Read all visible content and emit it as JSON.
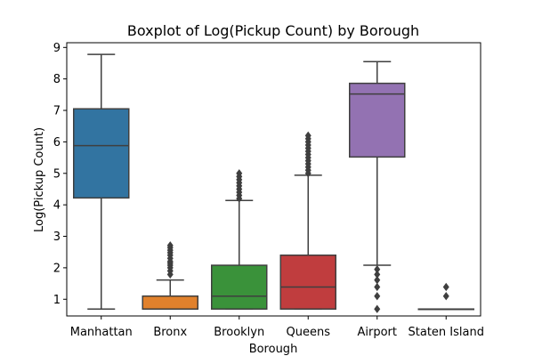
{
  "chart_data": {
    "type": "boxplot",
    "title": "Boxplot of Log(Pickup Count) by Borough",
    "xlabel": "Borough",
    "ylabel": "Log(Pickup Count)",
    "ylim": [
      0.47,
      9.15
    ],
    "yticks": [
      1,
      2,
      3,
      4,
      5,
      6,
      7,
      8,
      9
    ],
    "grid": false,
    "categories": [
      "Manhattan",
      "Bronx",
      "Brooklyn",
      "Queens",
      "Airport",
      "Staten Island"
    ],
    "boxes": [
      {
        "category": "Manhattan",
        "color": "#3274a1",
        "whisker_low": 0.69,
        "q1": 4.22,
        "median": 5.88,
        "q3": 7.05,
        "whisker_high": 8.78,
        "outliers": []
      },
      {
        "category": "Bronx",
        "color": "#e1812c",
        "whisker_low": 0.69,
        "q1": 0.69,
        "median": 0.69,
        "q3": 1.1,
        "whisker_high": 1.61,
        "outliers": [
          1.79,
          1.9,
          2.0,
          2.08,
          2.15,
          2.2,
          2.3,
          2.4,
          2.48,
          2.56,
          2.64,
          2.71
        ]
      },
      {
        "category": "Brooklyn",
        "color": "#3a923a",
        "whisker_low": 0.69,
        "q1": 0.69,
        "median": 1.1,
        "q3": 2.08,
        "whisker_high": 4.14,
        "outliers": [
          4.2,
          4.3,
          4.4,
          4.5,
          4.6,
          4.7,
          4.8,
          4.9,
          5.0
        ]
      },
      {
        "category": "Queens",
        "color": "#c03d3e",
        "whisker_low": 0.69,
        "q1": 0.69,
        "median": 1.39,
        "q3": 2.4,
        "whisker_high": 4.94,
        "outliers": [
          5.0,
          5.1,
          5.2,
          5.3,
          5.4,
          5.5,
          5.6,
          5.7,
          5.8,
          5.9,
          6.0,
          6.1,
          6.2
        ]
      },
      {
        "category": "Airport",
        "color": "#9372b2",
        "whisker_low": 2.08,
        "q1": 5.52,
        "median": 7.52,
        "q3": 7.86,
        "whisker_high": 8.55,
        "outliers": [
          0.69,
          1.1,
          1.39,
          1.61,
          1.79,
          1.95
        ]
      },
      {
        "category": "Staten Island",
        "color": "#845b53",
        "whisker_low": 0.69,
        "q1": 0.69,
        "median": 0.69,
        "q3": 0.69,
        "whisker_high": 0.69,
        "outliers": [
          1.1,
          1.39
        ]
      }
    ]
  }
}
